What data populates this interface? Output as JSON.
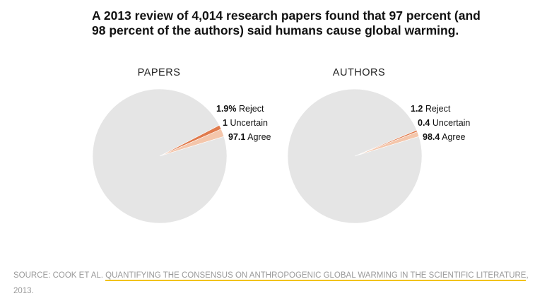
{
  "title": "A 2013 review of 4,014 research papers found that 97 percent (and 98 percent of the authors) said humans cause global warming.",
  "chart_data": [
    {
      "type": "pie",
      "title": "PAPERS",
      "slices": [
        {
          "label": "Reject",
          "value": 1.9,
          "value_text": "1.9%",
          "color": "#f4c6ab"
        },
        {
          "label": "Uncertain",
          "value": 1,
          "value_text": "1",
          "color": "#e07a4c"
        },
        {
          "label": "Agree",
          "value": 97.1,
          "value_text": "97.1",
          "color": "#e5e5e5"
        }
      ]
    },
    {
      "type": "pie",
      "title": "AUTHORS",
      "slices": [
        {
          "label": "Reject",
          "value": 1.2,
          "value_text": "1.2",
          "color": "#f4c6ab"
        },
        {
          "label": "Uncertain",
          "value": 0.4,
          "value_text": "0.4",
          "color": "#e07a4c"
        },
        {
          "label": "Agree",
          "value": 98.4,
          "value_text": "98.4",
          "color": "#e5e5e5"
        }
      ]
    }
  ],
  "source": {
    "prefix": "Source: Cook et al.",
    "link_text": "Quantifying the consensus on anthropogenic global warming in the scientific literature",
    "suffix": ", 2013."
  }
}
